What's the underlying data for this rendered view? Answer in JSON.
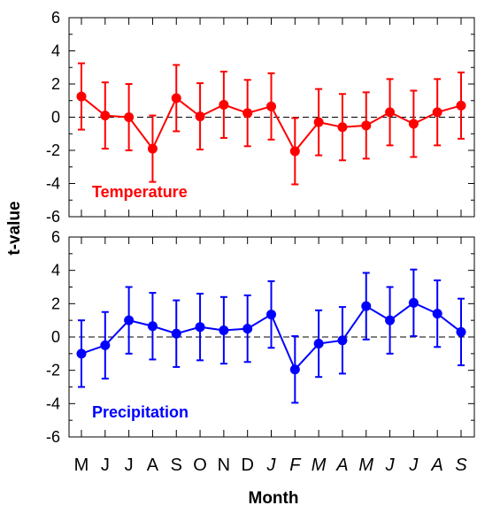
{
  "chart_data": {
    "type": "line",
    "ylabel": "t-value",
    "xlabel": "Month",
    "categories": [
      "M",
      "J",
      "J",
      "A",
      "S",
      "O",
      "N",
      "D",
      "J",
      "F",
      "M",
      "A",
      "M",
      "J",
      "J",
      "A",
      "S"
    ],
    "italic_from_index": 8,
    "ylim": [
      -6,
      6
    ],
    "yticks": [
      6,
      4,
      2,
      0,
      -2,
      -4,
      -6
    ],
    "error_halfwidth": 2.0,
    "zero_line": "dashed",
    "panels": [
      {
        "name": "Temperature",
        "color": "#ff0000",
        "values": [
          1.25,
          0.1,
          0.0,
          -1.9,
          1.15,
          0.05,
          0.75,
          0.25,
          0.65,
          -2.05,
          -0.3,
          -0.6,
          -0.5,
          0.3,
          -0.4,
          0.3,
          0.7
        ]
      },
      {
        "name": "Precipitation",
        "color": "#0000ff",
        "values": [
          -1.0,
          -0.5,
          1.0,
          0.65,
          0.2,
          0.6,
          0.4,
          0.5,
          1.35,
          -1.95,
          -0.4,
          -0.2,
          1.85,
          1.0,
          2.05,
          1.4,
          0.3
        ]
      }
    ]
  }
}
